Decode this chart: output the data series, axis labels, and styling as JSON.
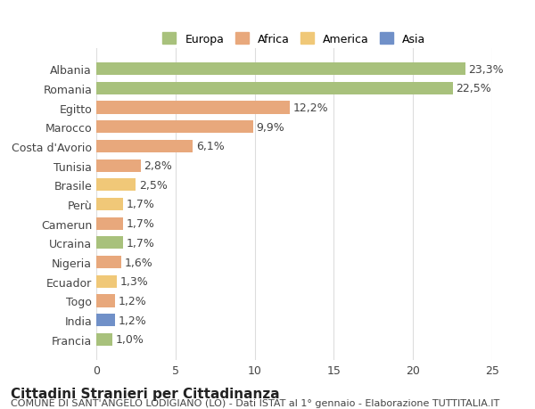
{
  "countries": [
    "Albania",
    "Romania",
    "Egitto",
    "Marocco",
    "Costa d'Avorio",
    "Tunisia",
    "Brasile",
    "Perù",
    "Camerun",
    "Ucraina",
    "Nigeria",
    "Ecuador",
    "Togo",
    "India",
    "Francia"
  ],
  "values": [
    23.3,
    22.5,
    12.2,
    9.9,
    6.1,
    2.8,
    2.5,
    1.7,
    1.7,
    1.7,
    1.6,
    1.3,
    1.2,
    1.2,
    1.0
  ],
  "labels": [
    "23,3%",
    "22,5%",
    "12,2%",
    "9,9%",
    "6,1%",
    "2,8%",
    "2,5%",
    "1,7%",
    "1,7%",
    "1,7%",
    "1,6%",
    "1,3%",
    "1,2%",
    "1,2%",
    "1,0%"
  ],
  "colors": [
    "#a8c17c",
    "#a8c17c",
    "#e8a87c",
    "#e8a87c",
    "#e8a87c",
    "#e8a87c",
    "#f0c878",
    "#f0c878",
    "#e8a87c",
    "#a8c17c",
    "#e8a87c",
    "#f0c878",
    "#e8a87c",
    "#7090c8",
    "#a8c17c"
  ],
  "continents": [
    "Europa",
    "Europa",
    "Africa",
    "Africa",
    "Africa",
    "Africa",
    "America",
    "America",
    "Africa",
    "Europa",
    "Africa",
    "America",
    "Africa",
    "Asia",
    "Europa"
  ],
  "legend_labels": [
    "Europa",
    "Africa",
    "America",
    "Asia"
  ],
  "legend_colors": [
    "#a8c17c",
    "#e8a87c",
    "#f0c878",
    "#7090c8"
  ],
  "title": "Cittadini Stranieri per Cittadinanza",
  "subtitle": "COMUNE DI SANT'ANGELO LODIGIANO (LO) - Dati ISTAT al 1° gennaio - Elaborazione TUTTITALIA.IT",
  "xlim": [
    0,
    25
  ],
  "xticks": [
    0,
    5,
    10,
    15,
    20,
    25
  ],
  "bg_color": "#ffffff",
  "grid_color": "#dddddd",
  "bar_height": 0.65,
  "label_fontsize": 9,
  "tick_fontsize": 9,
  "title_fontsize": 11,
  "subtitle_fontsize": 8
}
